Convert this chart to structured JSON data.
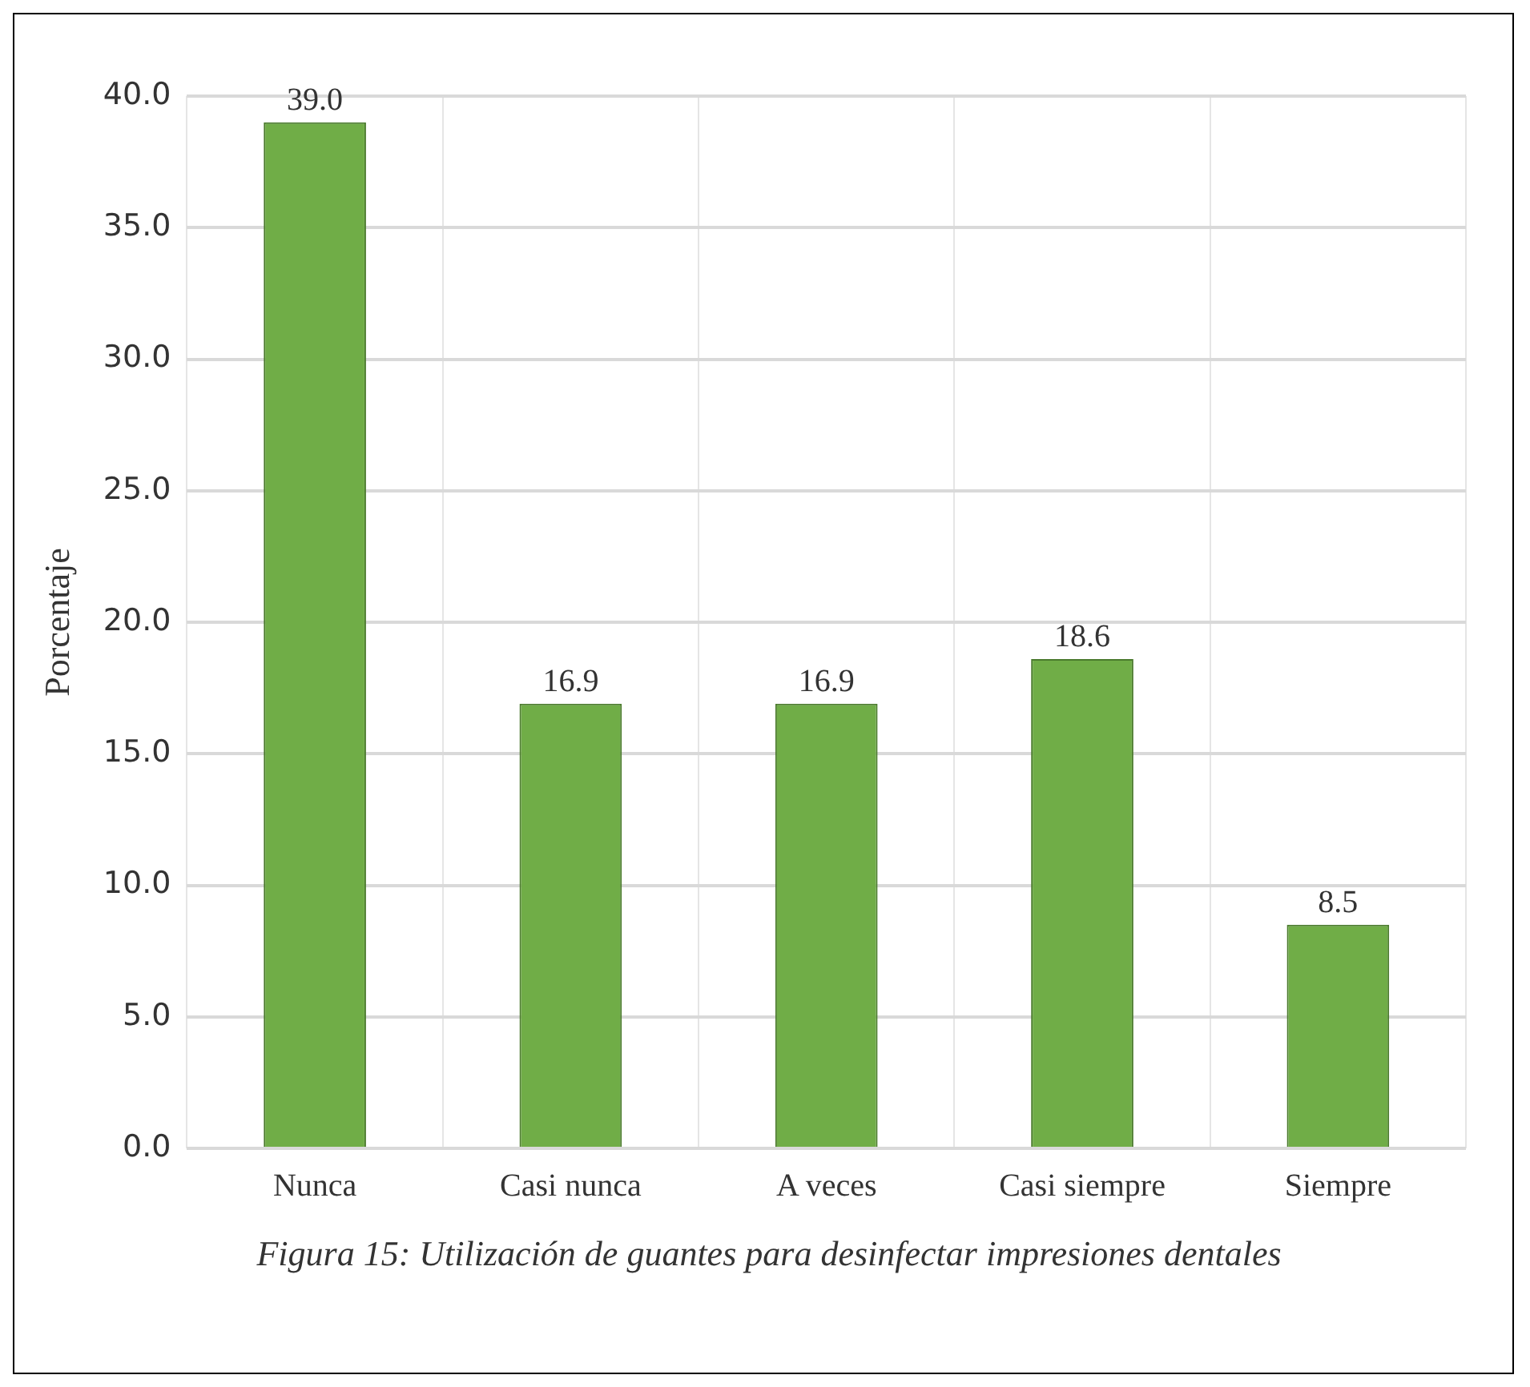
{
  "chart_data": {
    "type": "bar",
    "ylabel": "Porcentaje",
    "categories": [
      "Nunca",
      "Casi nunca",
      "A veces",
      "Casi siempre",
      "Siempre"
    ],
    "values": [
      39.0,
      16.9,
      16.9,
      18.6,
      8.5
    ],
    "value_labels": [
      "39.0",
      "16.9",
      "16.9",
      "18.6",
      "8.5"
    ],
    "color": "#70ad47",
    "ylim": [
      0,
      40
    ],
    "yticks": [
      {
        "value": 0,
        "label": "0.0"
      },
      {
        "value": 5,
        "label": "5.0"
      },
      {
        "value": 10,
        "label": "10.0"
      },
      {
        "value": 15,
        "label": "15.0"
      },
      {
        "value": 20,
        "label": "20.0"
      },
      {
        "value": 25,
        "label": "25.0"
      },
      {
        "value": 30,
        "label": "30.0"
      },
      {
        "value": 35,
        "label": "35.0"
      },
      {
        "value": 40,
        "label": "40.0"
      }
    ],
    "grid": true,
    "annotations": [
      "Figura 15: Utilización de guantes para desinfectar impresiones dentales"
    ]
  }
}
